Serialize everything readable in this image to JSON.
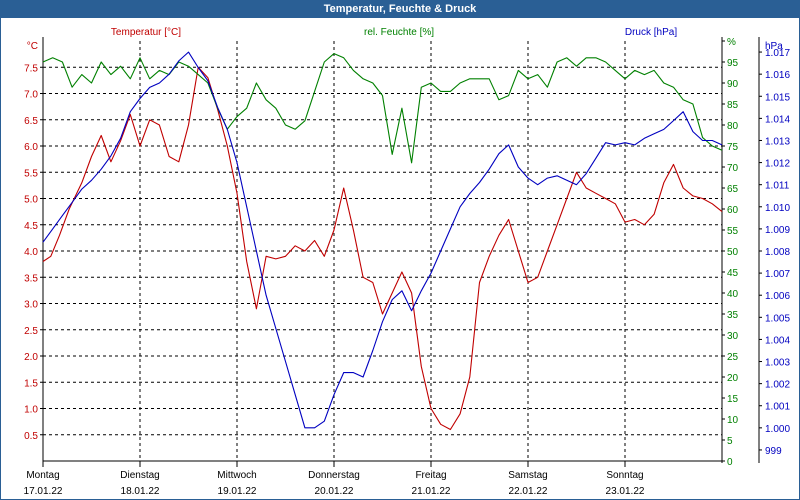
{
  "window": {
    "title": "Temperatur, Feuchte & Druck"
  },
  "colors": {
    "temperature": "#c00000",
    "humidity": "#008000",
    "pressure": "#0000c0",
    "titlebar": "#2a5f95",
    "grid": "#000000",
    "axis_text": "#000000"
  },
  "chart_data": {
    "type": "line",
    "title": "Temperatur, Feuchte & Druck",
    "grid": true,
    "x_label_days": [
      "Montag",
      "Dienstag",
      "Mittwoch",
      "Donnerstag",
      "Freitag",
      "Samstag",
      "Sonntag"
    ],
    "x_label_dates": [
      "17.01.22",
      "18.01.22",
      "19.01.22",
      "20.01.22",
      "21.01.22",
      "22.01.22",
      "23.01.22"
    ],
    "xlim": [
      0,
      7
    ],
    "axes": {
      "temperature": {
        "unit": "°C",
        "label": "Temperatur [°C]",
        "ylim": [
          0,
          8.0
        ],
        "ticks": [
          0.5,
          1.0,
          1.5,
          2.0,
          2.5,
          3.0,
          3.5,
          4.0,
          4.5,
          5.0,
          5.5,
          6.0,
          6.5,
          7.0,
          7.5
        ],
        "tick_labels": [
          "0.5",
          "1.0",
          "1.5",
          "2.0",
          "2.5",
          "3.0",
          "3.5",
          "4.0",
          "4.5",
          "5.0",
          "5.5",
          "6.0",
          "6.5",
          "7.0",
          "7.5"
        ]
      },
      "humidity": {
        "unit": "%",
        "label": "rel. Feuchte [%]",
        "ylim": [
          0,
          100
        ],
        "ticks": [
          0,
          5,
          10,
          15,
          20,
          25,
          30,
          35,
          40,
          45,
          50,
          55,
          60,
          65,
          70,
          75,
          80,
          85,
          90,
          95,
          100
        ],
        "tick_labels": [
          "0",
          "5",
          "10",
          "15",
          "20",
          "25",
          "30",
          "35",
          "40",
          "45",
          "50",
          "55",
          "60",
          "65",
          "70",
          "75",
          "80",
          "85",
          "90",
          "95",
          "%"
        ]
      },
      "pressure": {
        "unit": "hPa",
        "label": "Druck [hPa]",
        "ylim": [
          998.5,
          1017.5
        ],
        "ticks": [
          999,
          1000,
          1001,
          1002,
          1003,
          1004,
          1005,
          1006,
          1007,
          1008,
          1009,
          1010,
          1011,
          1012,
          1013,
          1014,
          1015,
          1016,
          1017
        ],
        "tick_labels": [
          "999",
          "1.000",
          "1.001",
          "1.002",
          "1.003",
          "1.004",
          "1.005",
          "1.006",
          "1.007",
          "1.008",
          "1.009",
          "1.010",
          "1.011",
          "1.012",
          "1.013",
          "1.014",
          "1.015",
          "1.016",
          "1.017"
        ]
      }
    },
    "series": [
      {
        "name": "Temperatur [°C]",
        "axis": "temperature",
        "x": [
          0,
          0.08,
          0.17,
          0.27,
          0.4,
          0.5,
          0.6,
          0.7,
          0.8,
          0.9,
          1.0,
          1.1,
          1.2,
          1.3,
          1.4,
          1.5,
          1.6,
          1.7,
          1.8,
          1.9,
          2.0,
          2.1,
          2.2,
          2.3,
          2.4,
          2.5,
          2.6,
          2.7,
          2.8,
          2.9,
          3.0,
          3.1,
          3.2,
          3.3,
          3.4,
          3.5,
          3.6,
          3.7,
          3.8,
          3.9,
          4.0,
          4.1,
          4.2,
          4.3,
          4.4,
          4.5,
          4.6,
          4.7,
          4.8,
          4.9,
          5.0,
          5.1,
          5.2,
          5.3,
          5.4,
          5.5,
          5.6,
          5.7,
          5.8,
          5.9,
          6.0,
          6.1,
          6.2,
          6.3,
          6.4,
          6.5,
          6.6,
          6.7,
          6.8,
          6.9,
          7.0
        ],
        "y": [
          3.8,
          3.9,
          4.3,
          4.8,
          5.3,
          5.8,
          6.2,
          5.7,
          6.1,
          6.6,
          6.0,
          6.5,
          6.4,
          5.8,
          5.7,
          6.4,
          7.5,
          7.3,
          6.7,
          6.0,
          5.1,
          3.8,
          2.9,
          3.9,
          3.85,
          3.9,
          4.1,
          4.0,
          4.2,
          3.9,
          4.4,
          5.2,
          4.4,
          3.5,
          3.4,
          2.8,
          3.2,
          3.6,
          3.2,
          1.8,
          1.0,
          0.7,
          0.6,
          0.9,
          1.6,
          3.4,
          3.9,
          4.3,
          4.6,
          4.0,
          3.4,
          3.5,
          4.0,
          4.5,
          5.0,
          5.5,
          5.2,
          5.1,
          5.0,
          4.9,
          4.55,
          4.6,
          4.5,
          4.7,
          5.3,
          5.65,
          5.2,
          5.05,
          5.0,
          4.9,
          4.75
        ]
      },
      {
        "name": "rel. Feuchte [%]",
        "axis": "humidity",
        "x": [
          0,
          0.1,
          0.2,
          0.3,
          0.4,
          0.5,
          0.6,
          0.7,
          0.8,
          0.9,
          1.0,
          1.1,
          1.2,
          1.3,
          1.4,
          1.5,
          1.6,
          1.7,
          1.8,
          1.9,
          2.0,
          2.1,
          2.2,
          2.3,
          2.4,
          2.5,
          2.6,
          2.7,
          2.8,
          2.9,
          3.0,
          3.1,
          3.2,
          3.3,
          3.4,
          3.5,
          3.6,
          3.7,
          3.8,
          3.9,
          4.0,
          4.1,
          4.2,
          4.3,
          4.4,
          4.5,
          4.6,
          4.7,
          4.8,
          4.9,
          5.0,
          5.1,
          5.2,
          5.3,
          5.4,
          5.5,
          5.6,
          5.7,
          5.8,
          5.9,
          6.0,
          6.1,
          6.2,
          6.3,
          6.4,
          6.5,
          6.6,
          6.7,
          6.8,
          6.9,
          7.0
        ],
        "y": [
          95,
          96,
          95,
          89,
          92,
          90,
          95,
          92,
          94,
          91,
          96,
          91,
          93,
          92,
          95,
          94,
          92,
          90,
          84,
          79,
          82,
          84,
          90,
          86,
          84,
          80,
          79,
          81,
          88,
          95,
          97,
          96,
          93,
          91,
          90,
          87,
          73,
          84,
          71,
          89,
          90,
          88,
          88,
          90,
          91,
          91,
          91,
          86,
          87,
          93,
          91,
          92,
          89,
          95,
          96,
          94,
          96,
          96,
          95,
          93,
          91,
          93,
          92,
          93,
          90,
          89,
          86,
          85,
          77,
          75,
          74
        ]
      },
      {
        "name": "Druck [hPa]",
        "axis": "pressure",
        "x": [
          0,
          0.1,
          0.2,
          0.3,
          0.4,
          0.5,
          0.6,
          0.7,
          0.8,
          0.9,
          1.0,
          1.1,
          1.2,
          1.3,
          1.4,
          1.5,
          1.6,
          1.7,
          1.8,
          1.9,
          2.0,
          2.1,
          2.2,
          2.3,
          2.4,
          2.5,
          2.6,
          2.7,
          2.8,
          2.9,
          3.0,
          3.1,
          3.2,
          3.3,
          3.4,
          3.5,
          3.6,
          3.7,
          3.8,
          3.9,
          4.0,
          4.1,
          4.2,
          4.3,
          4.4,
          4.5,
          4.6,
          4.7,
          4.8,
          4.9,
          5.0,
          5.1,
          5.2,
          5.3,
          5.4,
          5.5,
          5.6,
          5.7,
          5.8,
          5.9,
          6.0,
          6.1,
          6.2,
          6.3,
          6.4,
          6.5,
          6.6,
          6.7,
          6.8,
          6.9,
          7.0
        ],
        "y": [
          1008.4,
          1009.0,
          1009.6,
          1010.2,
          1010.8,
          1011.2,
          1011.7,
          1012.3,
          1013.1,
          1014.3,
          1014.9,
          1015.4,
          1015.6,
          1016.0,
          1016.6,
          1017.0,
          1016.3,
          1015.7,
          1014.5,
          1013.5,
          1012.0,
          1010.0,
          1008.0,
          1006.0,
          1004.5,
          1003.0,
          1001.5,
          1000.0,
          1000.0,
          1000.3,
          1001.5,
          1002.5,
          1002.5,
          1002.3,
          1003.5,
          1004.8,
          1005.8,
          1006.2,
          1005.3,
          1006.2,
          1007.0,
          1008.0,
          1009.0,
          1010.0,
          1010.6,
          1011.1,
          1011.7,
          1012.4,
          1012.8,
          1011.8,
          1011.3,
          1011.0,
          1011.3,
          1011.4,
          1011.2,
          1011.0,
          1011.5,
          1012.2,
          1012.9,
          1012.8,
          1012.9,
          1012.8,
          1013.1,
          1013.3,
          1013.5,
          1013.9,
          1014.3,
          1013.4,
          1013.0,
          1013.0,
          1012.8
        ]
      }
    ]
  }
}
